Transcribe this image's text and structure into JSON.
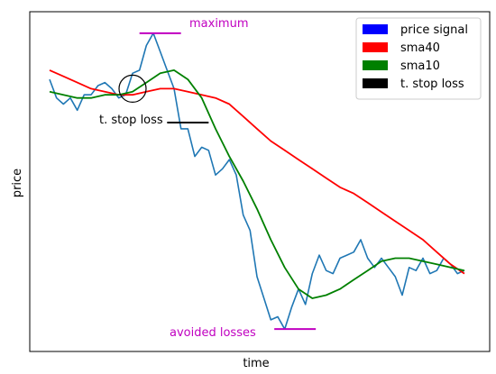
{
  "chart_data": {
    "type": "line",
    "xlabel": "time",
    "ylabel": "price",
    "xticks": "none",
    "yticks": "none",
    "grid": false,
    "legend": {
      "placement": "top-right",
      "entries": [
        {
          "label": "price signal",
          "color": "#0000ff"
        },
        {
          "label": "sma40",
          "color": "#ff0000"
        },
        {
          "label": "sma10",
          "color": "#008000"
        },
        {
          "label": "t. stop loss",
          "color": "#000000"
        }
      ]
    },
    "xlim": [
      0,
      60
    ],
    "ylim": [
      0,
      100
    ],
    "series": [
      {
        "name": "price signal",
        "color": "#1f77b4",
        "x": [
          0,
          1,
          2,
          3,
          4,
          5,
          6,
          7,
          8,
          9,
          10,
          11,
          12,
          13,
          14,
          15,
          16,
          17,
          18,
          19,
          20,
          21,
          22,
          23,
          24,
          25,
          26,
          27,
          28,
          29,
          30,
          31,
          32,
          33,
          34,
          35,
          36,
          37,
          38,
          39,
          40,
          41,
          42,
          43,
          44,
          45,
          46,
          47,
          48,
          49,
          50,
          51,
          52,
          53,
          54,
          55,
          56,
          57,
          58,
          59,
          60
        ],
        "y": [
          83,
          77,
          75,
          77,
          73,
          78,
          78,
          81,
          82,
          80,
          77,
          78,
          85,
          86,
          94,
          98,
          92,
          86,
          80,
          67,
          67,
          58,
          61,
          60,
          52,
          54,
          57,
          52,
          39,
          34,
          19,
          12,
          5,
          6,
          2,
          9,
          15,
          10,
          20,
          26,
          21,
          20,
          25,
          26,
          27,
          31,
          25,
          22,
          25,
          22,
          19,
          13,
          22,
          21,
          25,
          20,
          21,
          25,
          23,
          20,
          21
        ]
      },
      {
        "name": "sma40",
        "color": "#ff0000",
        "x": [
          0,
          2,
          4,
          6,
          8,
          10,
          12,
          14,
          16,
          18,
          20,
          22,
          24,
          26,
          28,
          30,
          32,
          34,
          36,
          38,
          40,
          42,
          44,
          46,
          48,
          50,
          52,
          54,
          56,
          58,
          60
        ],
        "y": [
          86,
          84,
          82,
          80,
          79,
          78,
          78,
          79,
          80,
          80,
          79,
          78,
          77,
          75,
          71,
          67,
          63,
          60,
          57,
          54,
          51,
          48,
          46,
          43,
          40,
          37,
          34,
          31,
          27,
          23,
          20
        ]
      },
      {
        "name": "sma10",
        "color": "#008000",
        "x": [
          0,
          2,
          4,
          6,
          8,
          10,
          12,
          14,
          16,
          18,
          20,
          22,
          24,
          26,
          28,
          30,
          32,
          34,
          36,
          38,
          40,
          42,
          44,
          46,
          48,
          50,
          52,
          54,
          56,
          58,
          60
        ],
        "y": [
          79,
          78,
          77,
          77,
          78,
          78,
          79,
          82,
          85,
          86,
          83,
          77,
          67,
          58,
          50,
          41,
          31,
          22,
          15,
          12,
          13,
          15,
          18,
          21,
          24,
          25,
          25,
          24,
          23,
          22,
          21
        ]
      }
    ],
    "annotations": [
      {
        "text": "maximum",
        "color": "#c000c0"
      },
      {
        "text": "t. stop loss",
        "color": "#000000"
      },
      {
        "text": "avoided losses",
        "color": "#c000c0"
      }
    ],
    "marks": {
      "maximum_line": {
        "x": [
          13,
          19
        ],
        "y": 98,
        "color": "#c000c0"
      },
      "stop_loss_line": {
        "x": [
          17,
          23
        ],
        "y": 69,
        "color": "#000000"
      },
      "avoided_line": {
        "x": [
          32.5,
          38.5
        ],
        "y": 2,
        "color": "#c000c0"
      },
      "stop_circle": {
        "x": 12,
        "y": 80
      }
    }
  }
}
